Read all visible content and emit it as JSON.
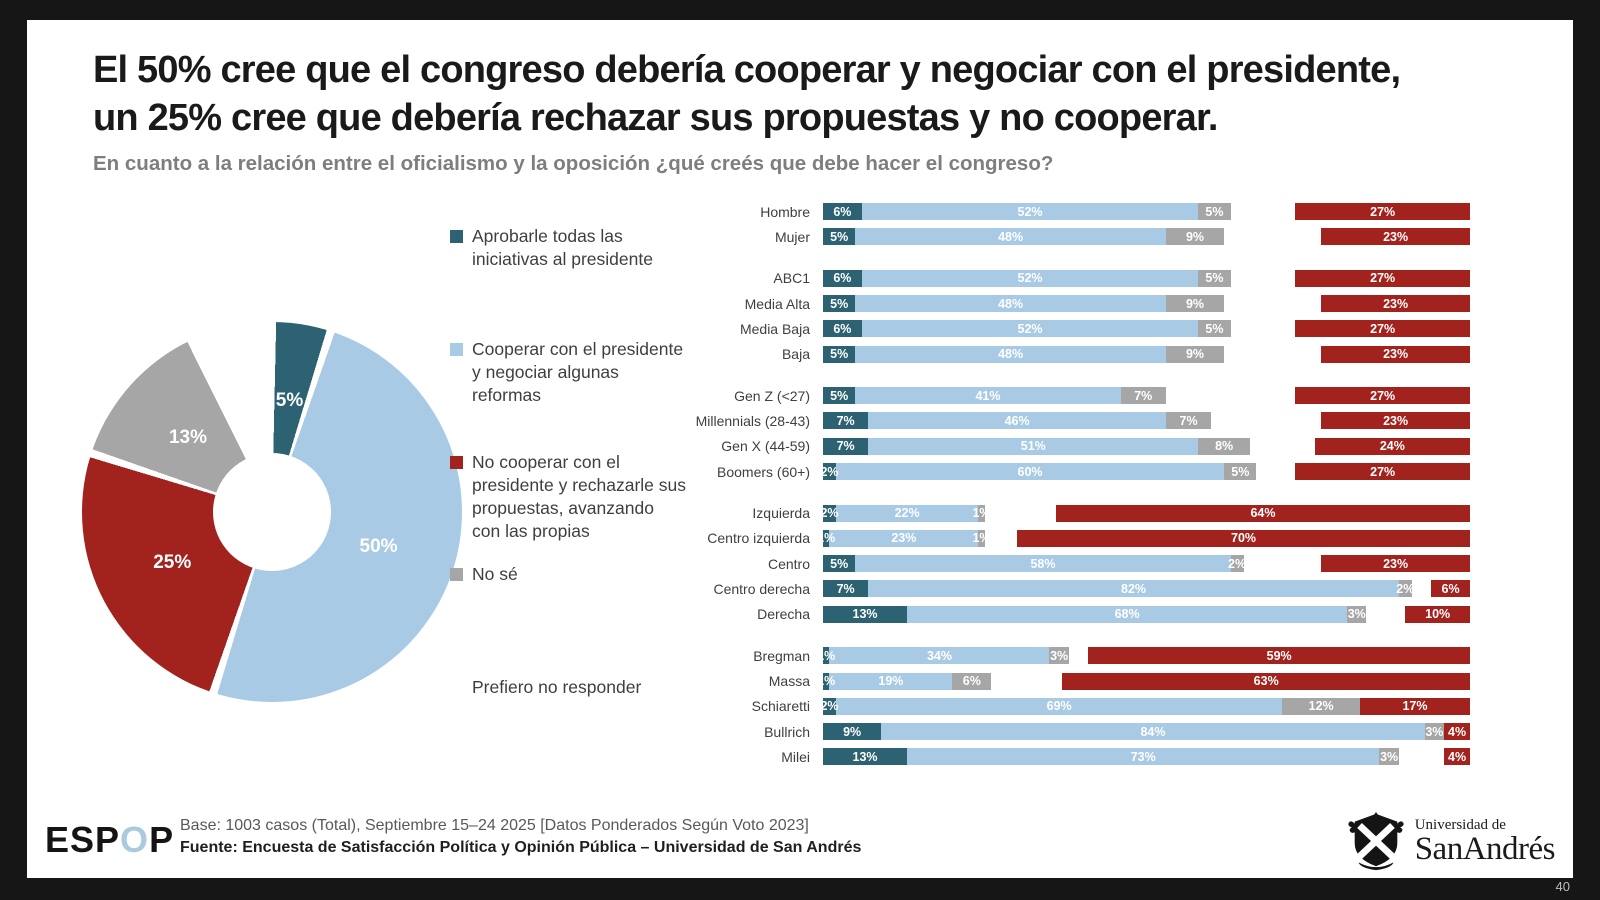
{
  "page": {
    "number": "40"
  },
  "header": {
    "title_line1": "El 50% cree que el congreso debería cooperar y negociar con el presidente,",
    "title_line2": "un 25% cree que debería rechazar sus propuestas y no cooperar.",
    "subtitle": "En cuanto a la relación entre el oficialismo y la oposición ¿qué creés que debe hacer el congreso?"
  },
  "legend": {
    "items": [
      {
        "label": "Aprobarle todas las iniciativas al presidente",
        "color": "#2D6273"
      },
      {
        "label": "Cooperar con el presidente y negociar algunas reformas",
        "color": "#A9CAE5"
      },
      {
        "label": "No cooperar con el presidente y rechazarle sus propuestas, avanzando con las propias",
        "color": "#A2221E"
      },
      {
        "label": "No sé",
        "color": "#A6A6A6"
      },
      {
        "label": "Prefiero no responder",
        "color": "#FFFFFF"
      }
    ]
  },
  "footer": {
    "espop": {
      "prefix": "ESP",
      "accent": "O",
      "suffix": "P",
      "accent_color": "#A9CBDD"
    },
    "base_line": "Base: 1003 casos (Total), Septiembre 15–24 2025 [Datos Ponderados Según Voto 2023]",
    "fuente_line": "Fuente: Encuesta de Satisfacción Política y Opinión Pública – Universidad de San Andrés",
    "university_line1": "Universidad de",
    "university_line2": "SanAndrés"
  },
  "chart_data": [
    {
      "type": "pie",
      "donut": true,
      "labels": [
        "Aprobarle todas las iniciativas al presidente",
        "Cooperar con el presidente y negociar algunas reformas",
        "No cooperar con el presidente y rechazarle sus propuestas, avanzando con las propias",
        "No sé",
        "Prefiero no responder"
      ],
      "values": [
        5,
        50,
        25,
        13,
        7
      ],
      "colors": [
        "#2D6273",
        "#A9CAE5",
        "#A2221E",
        "#A6A6A6",
        "#FFFFFF"
      ],
      "label_format": "percent",
      "start_angle_deg": 0
    },
    {
      "type": "bar",
      "subtype": "horizontal-stacked-100",
      "axis_range": [
        0,
        100
      ],
      "series": [
        {
          "name": "Aprobarle todas las iniciativas al presidente",
          "color": "#2D6273",
          "anchor": "left"
        },
        {
          "name": "Cooperar con el presidente y negociar algunas reformas",
          "color": "#A9CAE5",
          "anchor": "left"
        },
        {
          "name": "No sé",
          "color": "#A6A6A6",
          "anchor": "left"
        },
        {
          "name": "No cooperar con el presidente y rechazarle sus propuestas, avanzando con las propias",
          "color": "#A2221E",
          "anchor": "right"
        }
      ],
      "gap_series": "Prefiero no responder",
      "groups": [
        [
          {
            "label": "Hombre",
            "values": [
              6,
              52,
              5,
              27
            ]
          },
          {
            "label": "Mujer",
            "values": [
              5,
              48,
              9,
              23
            ]
          }
        ],
        [
          {
            "label": "ABC1",
            "values": [
              6,
              52,
              5,
              27
            ]
          },
          {
            "label": "Media Alta",
            "values": [
              5,
              48,
              9,
              23
            ]
          },
          {
            "label": "Media Baja",
            "values": [
              6,
              52,
              5,
              27
            ]
          },
          {
            "label": "Baja",
            "values": [
              5,
              48,
              9,
              23
            ]
          }
        ],
        [
          {
            "label": "Gen Z (<27)",
            "values": [
              5,
              41,
              7,
              27
            ]
          },
          {
            "label": "Millennials (28-43)",
            "values": [
              7,
              46,
              7,
              23
            ]
          },
          {
            "label": "Gen X (44-59)",
            "values": [
              7,
              51,
              8,
              24
            ]
          },
          {
            "label": "Boomers (60+)",
            "values": [
              2,
              60,
              5,
              27
            ]
          }
        ],
        [
          {
            "label": "Izquierda",
            "values": [
              2,
              22,
              1,
              64
            ]
          },
          {
            "label": "Centro izquierda",
            "values": [
              1,
              23,
              1,
              70
            ]
          },
          {
            "label": "Centro",
            "values": [
              5,
              58,
              2,
              23
            ]
          },
          {
            "label": "Centro derecha",
            "values": [
              7,
              82,
              2,
              6
            ]
          },
          {
            "label": "Derecha",
            "values": [
              13,
              68,
              3,
              10
            ]
          }
        ],
        [
          {
            "label": "Bregman",
            "values": [
              1,
              34,
              3,
              59
            ]
          },
          {
            "label": "Massa",
            "values": [
              1,
              19,
              6,
              63
            ]
          },
          {
            "label": "Schiaretti",
            "values": [
              2,
              69,
              12,
              17
            ]
          },
          {
            "label": "Bullrich",
            "values": [
              9,
              84,
              3,
              4
            ]
          },
          {
            "label": "Milei",
            "values": [
              13,
              73,
              3,
              4
            ]
          }
        ]
      ]
    }
  ]
}
